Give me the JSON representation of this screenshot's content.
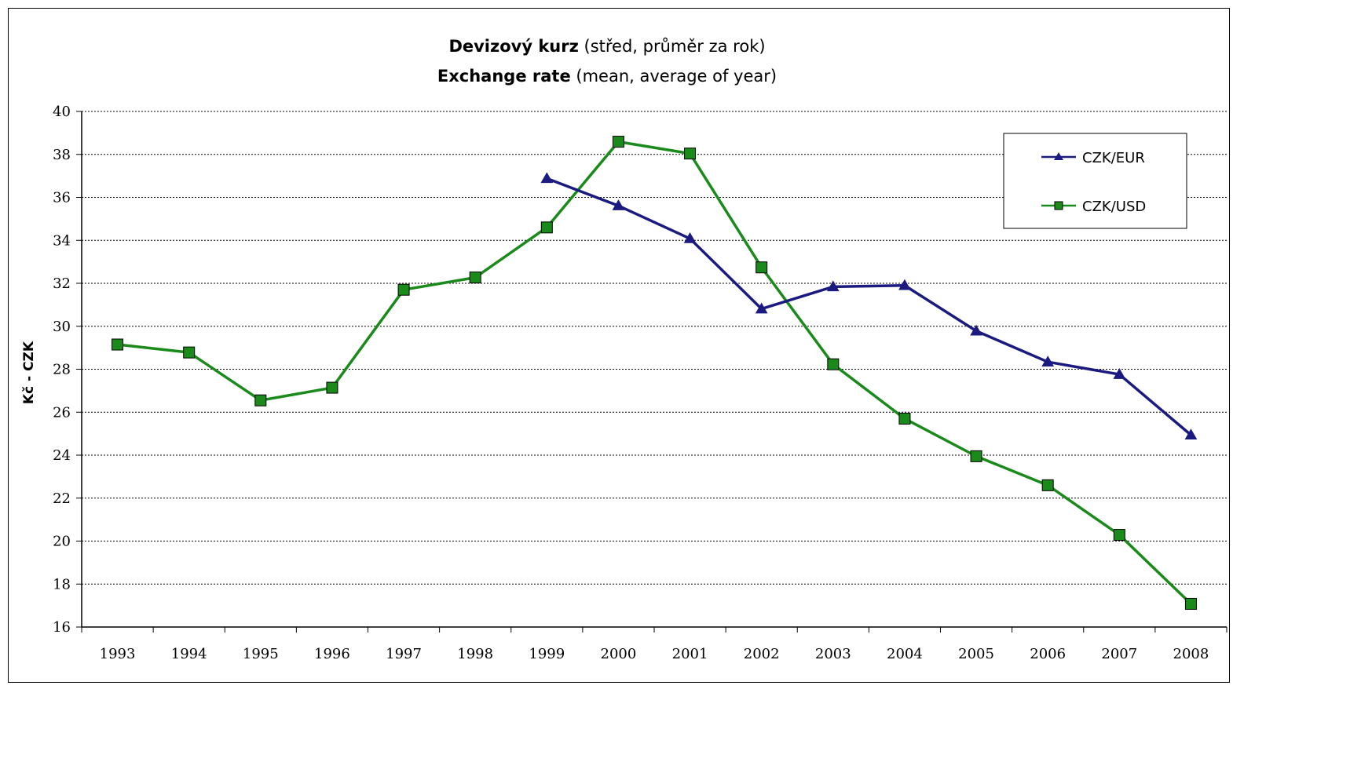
{
  "chart_data": {
    "type": "line",
    "title_line1_bold": "Devizový kurz",
    "title_line1_rest": " (střed, průměr za rok)",
    "title_line2_bold": "Exchange rate",
    "title_line2_rest": " (mean, average of year)",
    "xlabel": "",
    "ylabel": "Kč - CZK",
    "ylim": [
      16,
      40
    ],
    "yticks": [
      16,
      18,
      20,
      22,
      24,
      26,
      28,
      30,
      32,
      34,
      36,
      38,
      40
    ],
    "grid": "horizontal dashed",
    "legend_position": "top-right",
    "categories": [
      "1993",
      "1994",
      "1995",
      "1996",
      "1997",
      "1998",
      "1999",
      "2000",
      "2001",
      "2002",
      "2003",
      "2004",
      "2005",
      "2006",
      "2007",
      "2008"
    ],
    "series": [
      {
        "name": "CZK/EUR",
        "color": "#1a1a80",
        "marker": "triangle",
        "values": [
          null,
          null,
          null,
          null,
          null,
          null,
          36.88,
          35.61,
          34.08,
          30.81,
          31.84,
          31.9,
          29.78,
          28.34,
          27.76,
          24.94
        ]
      },
      {
        "name": "CZK/USD",
        "color": "#1a8a1a",
        "marker": "square",
        "values": [
          29.15,
          28.78,
          26.55,
          27.14,
          31.7,
          32.27,
          34.6,
          38.59,
          38.04,
          32.74,
          28.23,
          25.7,
          23.95,
          22.6,
          20.29,
          17.08
        ]
      }
    ]
  }
}
